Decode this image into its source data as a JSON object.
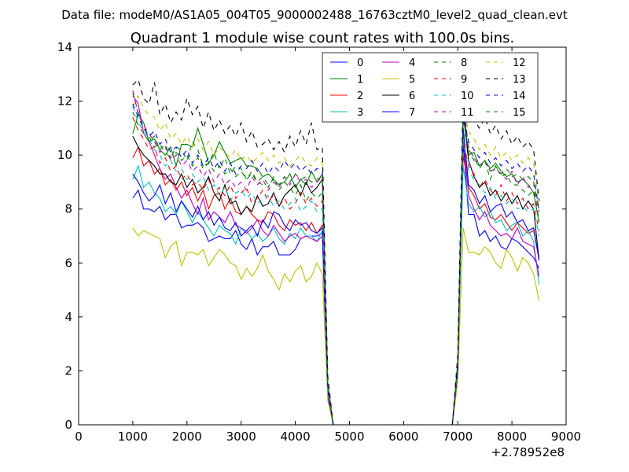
{
  "chart_data": {
    "type": "line",
    "suptitle": "Data file: modeM0/AS1A05_004T05_9000002488_16763cztM0_level2_quad_clean.evt",
    "title": "Quadrant 1 module wise count rates with 100.0s bins.",
    "xlabel": "",
    "ylabel": "",
    "x_offset_label": "+2.78952e8",
    "xlim": [
      0,
      9000
    ],
    "ylim": [
      0,
      14
    ],
    "xticks": [
      0,
      1000,
      2000,
      3000,
      4000,
      5000,
      6000,
      7000,
      8000,
      9000
    ],
    "yticks": [
      0,
      2,
      4,
      6,
      8,
      10,
      12,
      14
    ],
    "grid": false,
    "legend": {
      "position": "top-right",
      "columns": 4
    },
    "x": [
      1000,
      1100,
      1200,
      1300,
      1400,
      1500,
      1600,
      1700,
      1800,
      1900,
      2000,
      2100,
      2200,
      2300,
      2400,
      2500,
      2600,
      2700,
      2800,
      2900,
      3000,
      3100,
      3200,
      3300,
      3400,
      3500,
      3600,
      3700,
      3800,
      3900,
      4000,
      4100,
      4200,
      4300,
      4400,
      4500,
      4600,
      4700,
      4800,
      6800,
      6900,
      7000,
      7100,
      7200,
      7300,
      7400,
      7500,
      7600,
      7700,
      7800,
      7900,
      8000,
      8100,
      8200,
      8300,
      8400,
      8500
    ],
    "series": [
      {
        "name": "0",
        "color": "#0000ff",
        "dash": "solid",
        "values": [
          8.4,
          8.7,
          8.0,
          8.0,
          7.9,
          8.1,
          7.6,
          7.8,
          7.8,
          7.3,
          7.4,
          7.4,
          7.5,
          7.3,
          6.8,
          6.9,
          7.0,
          6.9,
          6.9,
          7.2,
          6.7,
          6.5,
          6.9,
          6.3,
          6.6,
          6.6,
          6.8,
          6.3,
          6.3,
          6.3,
          6.5,
          6.9,
          7.0,
          7.0,
          7.0,
          7.1,
          1.0,
          0,
          0,
          0,
          0,
          2.0,
          10.5,
          7.8,
          7.8,
          7.0,
          7.2,
          6.8,
          7.0,
          6.6,
          6.5,
          6.9,
          6.8,
          6.6,
          6.4,
          6.2,
          5.8
        ]
      },
      {
        "name": "1",
        "color": "#008000",
        "dash": "solid",
        "values": [
          10.8,
          11.5,
          11.2,
          10.5,
          10.6,
          10.2,
          10.0,
          10.3,
          9.6,
          10.4,
          10.4,
          10.3,
          11.0,
          10.4,
          9.7,
          10.0,
          10.5,
          10.1,
          9.7,
          9.8,
          9.9,
          9.6,
          9.6,
          9.5,
          9.2,
          9.3,
          9.1,
          8.9,
          9.0,
          9.3,
          8.8,
          9.1,
          8.9,
          9.4,
          9.0,
          9.3,
          1.5,
          0,
          0,
          0,
          0,
          2.2,
          11.8,
          10.0,
          10.1,
          9.6,
          9.8,
          9.5,
          9.7,
          9.4,
          9.2,
          9.3,
          9.0,
          9.1,
          8.9,
          8.6,
          7.5
        ]
      },
      {
        "name": "2",
        "color": "#ff0000",
        "dash": "solid",
        "values": [
          9.9,
          10.3,
          9.6,
          9.8,
          9.3,
          9.5,
          8.9,
          9.1,
          8.7,
          9.0,
          8.5,
          8.8,
          8.3,
          8.7,
          8.0,
          8.5,
          8.6,
          8.0,
          8.4,
          7.9,
          7.8,
          8.1,
          7.8,
          7.6,
          7.5,
          7.9,
          7.8,
          7.4,
          7.2,
          7.6,
          7.4,
          7.5,
          7.2,
          7.5,
          7.1,
          7.4,
          1.3,
          0,
          0,
          0,
          0,
          2.1,
          10.0,
          8.8,
          8.5,
          8.0,
          8.2,
          7.7,
          7.6,
          7.8,
          7.5,
          7.2,
          7.5,
          7.3,
          7.1,
          7.2,
          6.2
        ]
      },
      {
        "name": "3",
        "color": "#00bfbf",
        "dash": "solid",
        "values": [
          9.1,
          9.6,
          8.8,
          9.0,
          8.6,
          8.4,
          7.9,
          8.1,
          7.8,
          8.3,
          7.9,
          7.5,
          7.9,
          7.6,
          7.3,
          7.0,
          7.4,
          7.2,
          7.1,
          6.7,
          7.3,
          7.2,
          6.9,
          7.1,
          6.8,
          7.0,
          7.3,
          6.9,
          6.7,
          7.1,
          6.9,
          7.3,
          7.0,
          7.0,
          6.8,
          7.2,
          1.2,
          0,
          0,
          0,
          0,
          2.0,
          9.6,
          8.2,
          7.9,
          8.1,
          7.7,
          7.9,
          7.5,
          7.6,
          7.2,
          7.4,
          7.5,
          7.0,
          7.2,
          6.8,
          5.2
        ]
      },
      {
        "name": "4",
        "color": "#bf00bf",
        "dash": "solid",
        "values": [
          12.2,
          11.9,
          10.8,
          10.5,
          10.0,
          9.5,
          9.1,
          9.3,
          8.8,
          8.4,
          8.7,
          8.2,
          7.8,
          8.4,
          7.6,
          7.9,
          7.7,
          7.5,
          7.9,
          7.4,
          7.3,
          7.1,
          7.3,
          7.6,
          7.2,
          7.0,
          7.4,
          7.1,
          6.8,
          7.0,
          7.1,
          6.9,
          7.0,
          6.9,
          6.8,
          7.0,
          1.2,
          0,
          0,
          0,
          0,
          2.0,
          10.8,
          8.5,
          8.0,
          7.6,
          7.9,
          7.4,
          7.2,
          7.0,
          7.1,
          6.9,
          7.3,
          6.8,
          6.7,
          6.6,
          5.5
        ]
      },
      {
        "name": "5",
        "color": "#bfbf00",
        "dash": "solid",
        "values": [
          7.3,
          7.0,
          7.2,
          7.1,
          7.0,
          6.9,
          6.2,
          6.6,
          6.8,
          5.9,
          6.4,
          6.4,
          6.3,
          6.5,
          5.9,
          6.2,
          6.5,
          6.3,
          6.0,
          5.9,
          5.4,
          5.8,
          5.5,
          5.8,
          6.3,
          5.7,
          5.4,
          5.0,
          5.6,
          5.3,
          5.7,
          5.9,
          5.3,
          5.5,
          6.0,
          5.6,
          0.9,
          0,
          0,
          0,
          0,
          1.6,
          7.3,
          6.4,
          6.4,
          6.3,
          6.6,
          6.4,
          6.0,
          5.8,
          6.5,
          6.2,
          5.7,
          6.2,
          6.0,
          5.6,
          4.6
        ]
      },
      {
        "name": "6",
        "color": "#000000",
        "dash": "solid",
        "values": [
          10.7,
          10.3,
          10.0,
          9.8,
          9.6,
          9.3,
          9.3,
          9.0,
          8.9,
          9.3,
          8.8,
          9.1,
          8.6,
          8.8,
          9.2,
          8.6,
          8.3,
          8.9,
          8.2,
          8.3,
          7.8,
          8.1,
          7.9,
          8.5,
          8.1,
          8.2,
          8.6,
          8.1,
          8.5,
          8.7,
          8.9,
          8.5,
          9.0,
          8.6,
          8.8,
          9.1,
          1.4,
          0,
          0,
          0,
          0,
          2.2,
          11.6,
          9.8,
          9.2,
          8.8,
          9.0,
          8.5,
          8.7,
          8.3,
          8.6,
          8.2,
          8.5,
          8.0,
          8.3,
          8.0,
          6.1
        ]
      },
      {
        "name": "7",
        "color": "#0000ff",
        "dash": "solid",
        "values": [
          9.3,
          9.0,
          8.6,
          8.3,
          8.5,
          8.9,
          8.2,
          8.6,
          7.9,
          8.3,
          8.0,
          7.7,
          8.1,
          7.6,
          7.9,
          7.4,
          7.7,
          7.3,
          7.2,
          7.5,
          7.0,
          7.2,
          7.4,
          7.0,
          7.6,
          7.3,
          7.9,
          7.8,
          7.4,
          7.2,
          7.6,
          7.4,
          7.5,
          7.2,
          7.1,
          7.3,
          1.3,
          0,
          0,
          0,
          0,
          2.0,
          11.0,
          8.9,
          8.7,
          8.2,
          8.5,
          7.9,
          8.1,
          8.2,
          7.7,
          7.9,
          7.5,
          7.6,
          7.2,
          7.3,
          6.1
        ]
      },
      {
        "name": "8",
        "color": "#008000",
        "dash": "dashed",
        "values": [
          12.3,
          11.6,
          11.0,
          10.7,
          10.3,
          10.4,
          10.1,
          9.9,
          10.3,
          10.2,
          9.8,
          10.5,
          10.2,
          9.6,
          9.7,
          10.1,
          9.5,
          9.9,
          9.3,
          9.6,
          9.5,
          9.1,
          9.4,
          9.0,
          8.9,
          8.8,
          9.2,
          8.7,
          9.0,
          8.8,
          8.5,
          8.9,
          8.3,
          8.6,
          8.4,
          8.6,
          1.5,
          0,
          0,
          0,
          0,
          2.2,
          11.0,
          10.3,
          9.9,
          9.5,
          9.8,
          9.1,
          9.6,
          9.2,
          9.3,
          8.9,
          8.9,
          8.7,
          8.5,
          8.7,
          7.6
        ]
      },
      {
        "name": "9",
        "color": "#ff0000",
        "dash": "dashed",
        "values": [
          11.4,
          10.9,
          10.6,
          10.2,
          10.3,
          9.7,
          9.9,
          9.4,
          9.6,
          9.1,
          9.3,
          8.9,
          9.0,
          8.7,
          9.1,
          8.6,
          8.8,
          8.5,
          8.9,
          8.4,
          8.6,
          8.8,
          8.2,
          8.4,
          8.7,
          8.3,
          8.5,
          8.1,
          8.4,
          8.0,
          8.2,
          8.6,
          8.2,
          8.4,
          8.1,
          8.3,
          1.4,
          0,
          0,
          0,
          0,
          2.1,
          10.5,
          9.6,
          9.3,
          8.8,
          9.1,
          8.7,
          8.5,
          8.9,
          8.3,
          8.6,
          8.2,
          8.4,
          8.0,
          8.2,
          7.2
        ]
      },
      {
        "name": "10",
        "color": "#00bfbf",
        "dash": "dashed",
        "values": [
          11.8,
          11.2,
          10.9,
          10.6,
          10.2,
          10.0,
          9.6,
          9.8,
          9.4,
          9.5,
          9.1,
          9.3,
          9.0,
          9.2,
          8.7,
          8.9,
          8.5,
          8.8,
          8.3,
          8.6,
          8.7,
          8.4,
          8.6,
          8.2,
          8.4,
          8.5,
          8.1,
          8.3,
          8.0,
          8.2,
          8.4,
          7.9,
          8.1,
          8.3,
          7.9,
          8.0,
          1.3,
          0,
          0,
          0,
          0,
          2.1,
          10.6,
          9.4,
          9.1,
          8.9,
          8.6,
          8.8,
          8.4,
          8.5,
          8.2,
          8.4,
          8.0,
          8.1,
          7.9,
          8.0,
          7.0
        ]
      },
      {
        "name": "11",
        "color": "#bf00bf",
        "dash": "dashed",
        "values": [
          12.4,
          11.5,
          11.1,
          10.8,
          10.5,
          10.1,
          10.3,
          9.8,
          10.0,
          9.6,
          9.8,
          9.4,
          9.6,
          9.2,
          9.5,
          9.0,
          9.3,
          8.9,
          9.1,
          8.8,
          9.0,
          8.7,
          9.2,
          8.9,
          9.1,
          8.7,
          9.0,
          8.8,
          9.2,
          8.9,
          9.3,
          9.0,
          9.1,
          8.8,
          9.0,
          9.2,
          1.5,
          0,
          0,
          0,
          0,
          2.3,
          12.1,
          10.2,
          9.9,
          9.6,
          9.8,
          9.4,
          9.5,
          9.3,
          9.1,
          9.4,
          8.9,
          9.2,
          8.8,
          9.0,
          7.9
        ]
      },
      {
        "name": "12",
        "color": "#bfbf00",
        "dash": "dashed",
        "values": [
          11.8,
          12.2,
          11.7,
          11.5,
          11.4,
          10.9,
          11.2,
          10.6,
          10.8,
          10.4,
          10.7,
          10.3,
          10.6,
          10.2,
          10.5,
          10.0,
          10.3,
          10.1,
          9.9,
          10.2,
          9.8,
          10.0,
          9.7,
          9.9,
          10.1,
          9.8,
          10.0,
          9.7,
          9.9,
          9.6,
          9.8,
          10.0,
          9.7,
          9.6,
          9.9,
          9.7,
          1.6,
          0,
          0,
          0,
          0,
          2.4,
          11.8,
          10.9,
          10.6,
          10.2,
          10.4,
          10.0,
          10.3,
          9.9,
          10.1,
          9.8,
          10.0,
          9.7,
          9.9,
          9.7,
          8.1
        ]
      },
      {
        "name": "13",
        "color": "#000000",
        "dash": "dashed",
        "values": [
          12.6,
          12.8,
          12.1,
          11.9,
          12.7,
          11.5,
          11.9,
          11.2,
          11.6,
          11.3,
          12.1,
          11.5,
          11.8,
          11.0,
          11.6,
          10.9,
          11.3,
          10.8,
          11.1,
          10.7,
          11.2,
          10.5,
          10.9,
          10.3,
          10.4,
          10.6,
          10.2,
          10.5,
          10.1,
          10.7,
          10.3,
          10.9,
          10.4,
          11.2,
          10.2,
          10.3,
          1.8,
          0,
          0,
          0,
          0,
          2.6,
          12.5,
          11.6,
          11.3,
          11.0,
          11.4,
          10.8,
          11.1,
          10.6,
          10.9,
          10.4,
          10.7,
          10.3,
          10.5,
          10.2,
          8.3
        ]
      },
      {
        "name": "14",
        "color": "#0000ff",
        "dash": "dashed",
        "values": [
          11.9,
          11.4,
          11.0,
          10.7,
          10.9,
          10.4,
          10.6,
          10.1,
          10.3,
          9.9,
          10.2,
          9.7,
          10.0,
          9.6,
          9.9,
          9.5,
          9.8,
          9.4,
          9.7,
          9.3,
          9.6,
          9.5,
          9.8,
          9.4,
          9.7,
          9.3,
          9.6,
          9.4,
          9.8,
          9.5,
          9.7,
          9.4,
          9.6,
          9.3,
          9.5,
          9.4,
          1.5,
          0,
          0,
          0,
          0,
          2.3,
          11.5,
          10.5,
          10.2,
          9.9,
          10.1,
          9.7,
          9.9,
          9.6,
          9.8,
          9.5,
          9.7,
          9.4,
          9.6,
          9.3,
          7.9
        ]
      },
      {
        "name": "15",
        "color": "#008000",
        "dash": "dashed",
        "values": [
          11.6,
          11.1,
          10.8,
          10.5,
          10.7,
          10.2,
          10.4,
          9.9,
          10.1,
          9.8,
          10.0,
          9.6,
          9.9,
          9.5,
          9.7,
          9.4,
          9.6,
          9.3,
          9.5,
          9.2,
          9.4,
          9.1,
          9.3,
          9.0,
          9.2,
          8.9,
          9.1,
          8.9,
          9.2,
          9.0,
          9.3,
          9.1,
          9.2,
          9.0,
          9.1,
          9.2,
          1.5,
          0,
          0,
          0,
          0,
          2.2,
          11.3,
          10.1,
          9.8,
          9.6,
          9.8,
          9.4,
          9.6,
          9.3,
          9.5,
          9.2,
          9.3,
          9.1,
          9.2,
          9.0,
          7.5
        ]
      }
    ]
  }
}
